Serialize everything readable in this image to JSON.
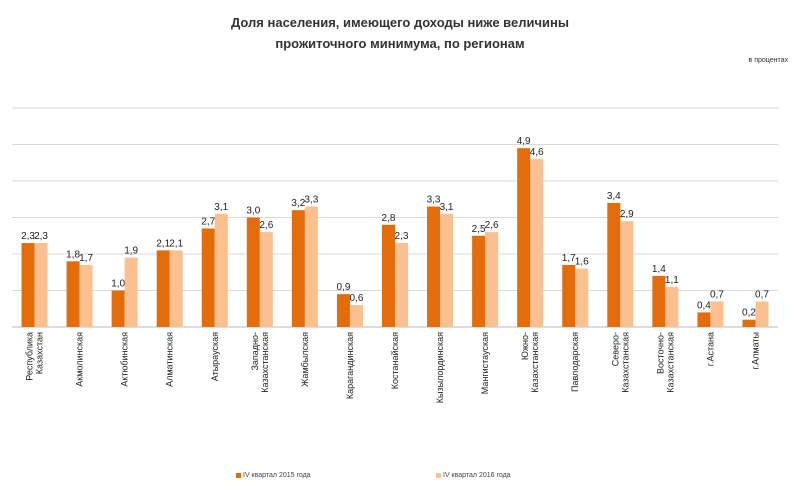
{
  "chart_data": {
    "type": "bar",
    "title_line1": "Доля населения, имеющего доходы ниже величины",
    "title_line2": "прожиточного минимума,  по регионам",
    "unit_label": "в процентах",
    "categories": [
      "Республика Казахстан",
      "Акмолинская",
      "Актюбинская",
      "Алматинская",
      "Атырауская",
      "Западно-Казахстанская",
      "Жамбылская",
      "Карагандинская",
      "Костанайская",
      "Кызылординская",
      "Мангистауская",
      "Южно-Казахстанская",
      "Павлодарская",
      "Северо-Казахстанская",
      "Восточно-Казахстанская",
      "г.Астана",
      "г.Алматы"
    ],
    "series": [
      {
        "name": "IV квартал 2015 года",
        "color": "#e46c0a",
        "values": [
          2.3,
          1.8,
          1.0,
          2.1,
          2.7,
          3.0,
          3.2,
          0.9,
          2.8,
          3.3,
          2.5,
          4.9,
          1.7,
          3.4,
          1.4,
          0.4,
          0.2
        ]
      },
      {
        "name": "IV квартал 2016 года",
        "color": "#fac090",
        "values": [
          2.3,
          1.7,
          1.9,
          2.1,
          3.1,
          2.6,
          3.3,
          0.6,
          2.3,
          3.1,
          2.6,
          4.6,
          1.6,
          2.9,
          1.1,
          0.7,
          0.7
        ]
      }
    ],
    "ylim": [
      0,
      6
    ],
    "grid": true,
    "y_axis_labels_shown": false,
    "legend_position": "bottom"
  }
}
